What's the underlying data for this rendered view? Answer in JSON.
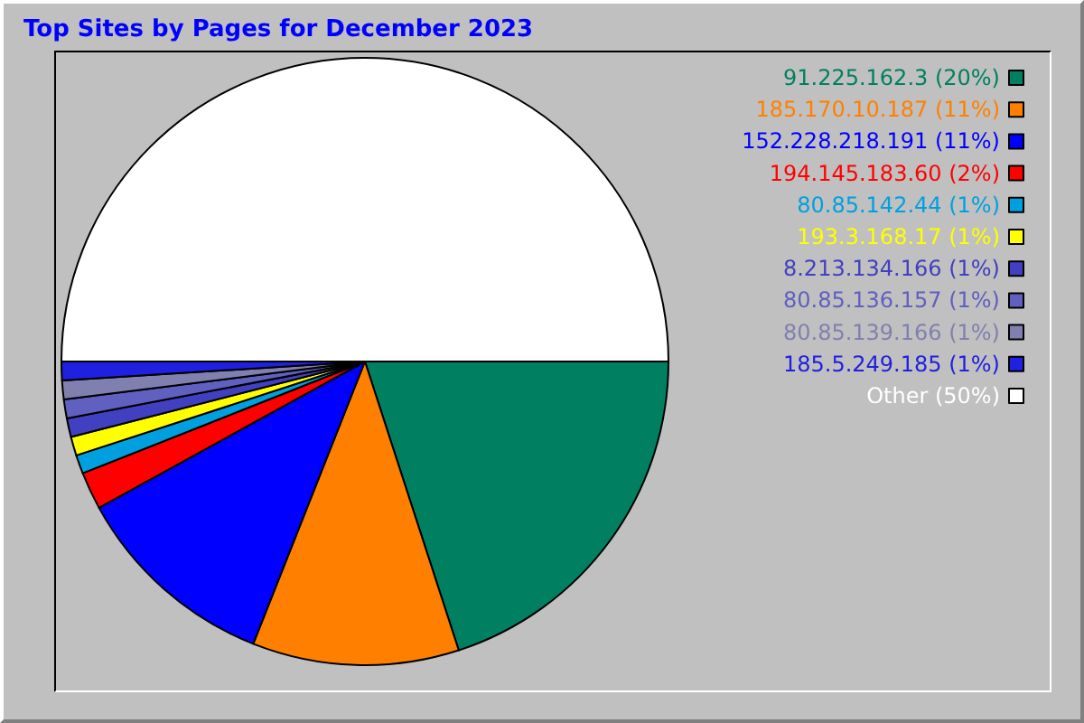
{
  "chart_data": {
    "type": "pie",
    "title": "Top Sites by Pages for December 2023",
    "categories": [
      "91.225.162.3",
      "185.170.10.187",
      "152.228.218.191",
      "194.145.183.60",
      "80.85.142.44",
      "193.3.168.17",
      "8.213.134.166",
      "80.85.136.157",
      "80.85.139.166",
      "185.5.249.185",
      "Other"
    ],
    "values": [
      20,
      11,
      11,
      2,
      1,
      1,
      1,
      1,
      1,
      1,
      50
    ],
    "value_labels": [
      "(20%)",
      "(11%)",
      "(11%)",
      "(2%)",
      "(1%)",
      "(1%)",
      "(1%)",
      "(1%)",
      "(1%)",
      "(1%)",
      "(50%)"
    ],
    "colors": [
      "#008060",
      "#ff8000",
      "#0000ff",
      "#ff0000",
      "#00a0e0",
      "#ffff00",
      "#4040c0",
      "#6060c0",
      "#8080b0",
      "#2020e0",
      "#ffffff"
    ],
    "legend": "top right"
  }
}
